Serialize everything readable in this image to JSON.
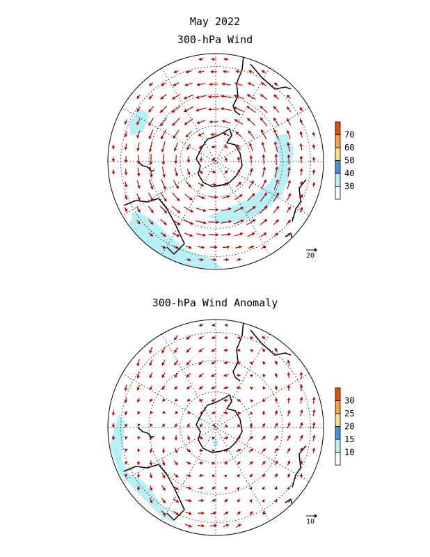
{
  "header": {
    "title": "May 2022"
  },
  "chart_data": [
    {
      "type": "vector_map",
      "title": "300-hPa Wind",
      "projection": "south-polar-stereographic",
      "vector_color": "#b00000",
      "reference_vector": "20",
      "colorbar": {
        "ticks": [
          "30",
          "40",
          "50",
          "60",
          "70"
        ],
        "colors": [
          "#ffffff",
          "#b8f0f8",
          "#4a90e0",
          "#ffe08a",
          "#f8a040",
          "#e85000"
        ]
      },
      "shaded_regions": [
        "jet-east",
        "jet-south-australia",
        "jet-southwest",
        "jet-northwest"
      ]
    },
    {
      "type": "vector_map",
      "title": "300-hPa Wind Anomaly",
      "projection": "south-polar-stereographic",
      "vector_color": "#b00000",
      "reference_vector": "10",
      "colorbar": {
        "ticks": [
          "10",
          "15",
          "20",
          "25",
          "30"
        ],
        "colors": [
          "#ffffff",
          "#b8f0f8",
          "#4a90e0",
          "#ffe08a",
          "#f8a040",
          "#e85000"
        ]
      },
      "shaded_regions": [
        "anomaly-west",
        "anomaly-center"
      ]
    }
  ]
}
